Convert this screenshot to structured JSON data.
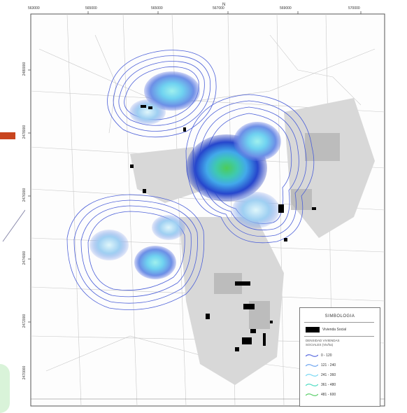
{
  "page": {
    "accent_color": "#c8441e"
  },
  "map": {
    "top_ticks": [
      "563000",
      "565000",
      "565000",
      "567000",
      "569000",
      "570000"
    ],
    "bottom_ticks": [
      "",
      "",
      "",
      "",
      "",
      ""
    ],
    "left_ticks": [
      "2480000",
      "2478000",
      "2476000",
      "2474000",
      "2472000",
      "2470000"
    ],
    "right_ticks": [
      "",
      "",
      "",
      "",
      "",
      ""
    ],
    "north_mark": "N"
  },
  "legend": {
    "title": "SIMBOLOGIA",
    "box_label": "Vivienda Social",
    "hint_line1": "DENSIDAD VIVIENDAS",
    "hint_line2": "SOCIALES (Viv/ha)",
    "ranges": [
      {
        "label": "0 - 120",
        "color": "#5b6de0"
      },
      {
        "label": "121 - 240",
        "color": "#6fa6f0"
      },
      {
        "label": "241 - 360",
        "color": "#79d8f3"
      },
      {
        "label": "361 - 480",
        "color": "#4fdcc3"
      },
      {
        "label": "481 - 600",
        "color": "#5ccf6b"
      }
    ]
  }
}
